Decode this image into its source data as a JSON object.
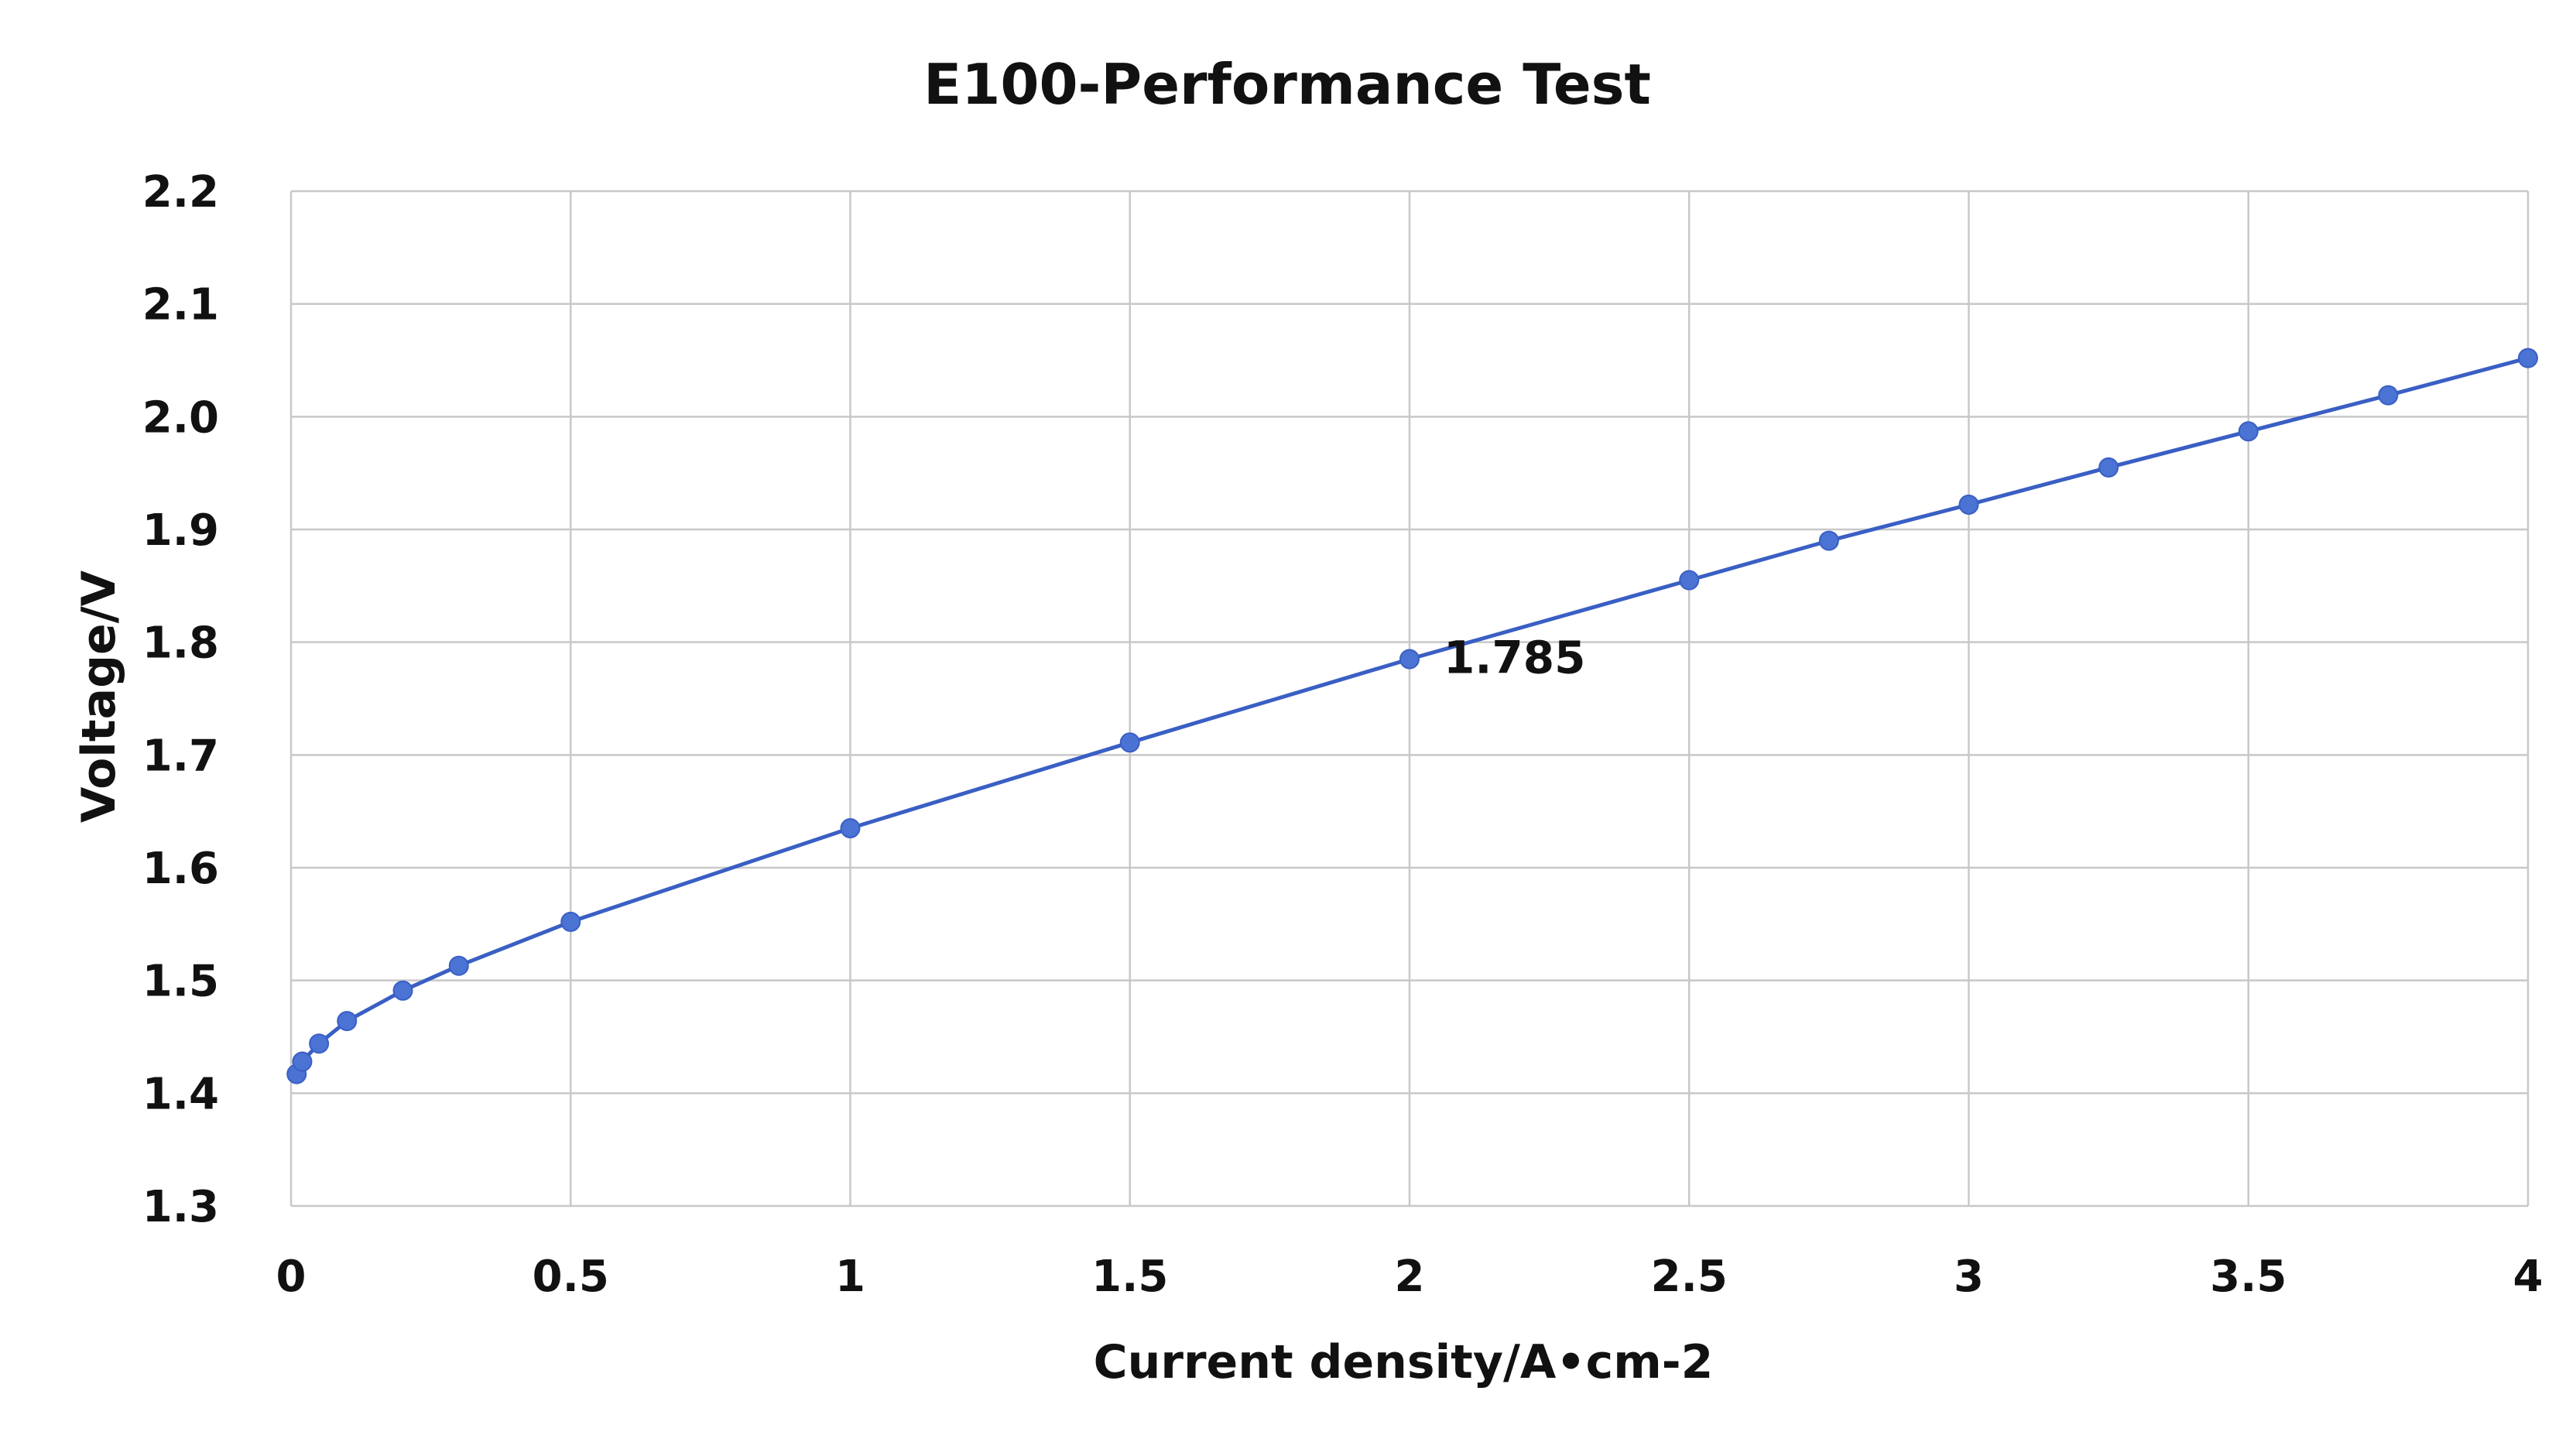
{
  "chart_data": {
    "type": "line",
    "title": "E100-Performance Test",
    "xlabel": "Current density/A•cm-2",
    "ylabel": "Voltage/V",
    "xlim": [
      0,
      4
    ],
    "ylim": [
      1.3,
      2.2
    ],
    "xticks": [
      "0",
      "0.5",
      "1",
      "1.5",
      "2",
      "2.5",
      "3",
      "3.5",
      "4"
    ],
    "yticks": [
      "1.3",
      "1.4",
      "1.5",
      "1.6",
      "1.7",
      "1.8",
      "1.9",
      "2.0",
      "2.1",
      "2.2"
    ],
    "grid": true,
    "colors": {
      "line": "#3a5fc4",
      "marker": "#4a73d4",
      "grid": "#c8c8c8"
    },
    "series": [
      {
        "x": [
          0.01,
          0.02,
          0.05,
          0.1,
          0.2,
          0.3,
          0.5,
          1.0,
          1.5,
          2.0,
          2.5,
          2.75,
          3.0,
          3.25,
          3.5,
          3.75,
          4.0
        ],
        "y": [
          1.417,
          1.428,
          1.444,
          1.464,
          1.491,
          1.513,
          1.552,
          1.635,
          1.711,
          1.785,
          1.855,
          1.89,
          1.922,
          1.955,
          1.987,
          2.019,
          2.052
        ]
      }
    ],
    "annotations": [
      {
        "x": 2.0,
        "y": 1.785,
        "text": "1.785"
      }
    ]
  }
}
